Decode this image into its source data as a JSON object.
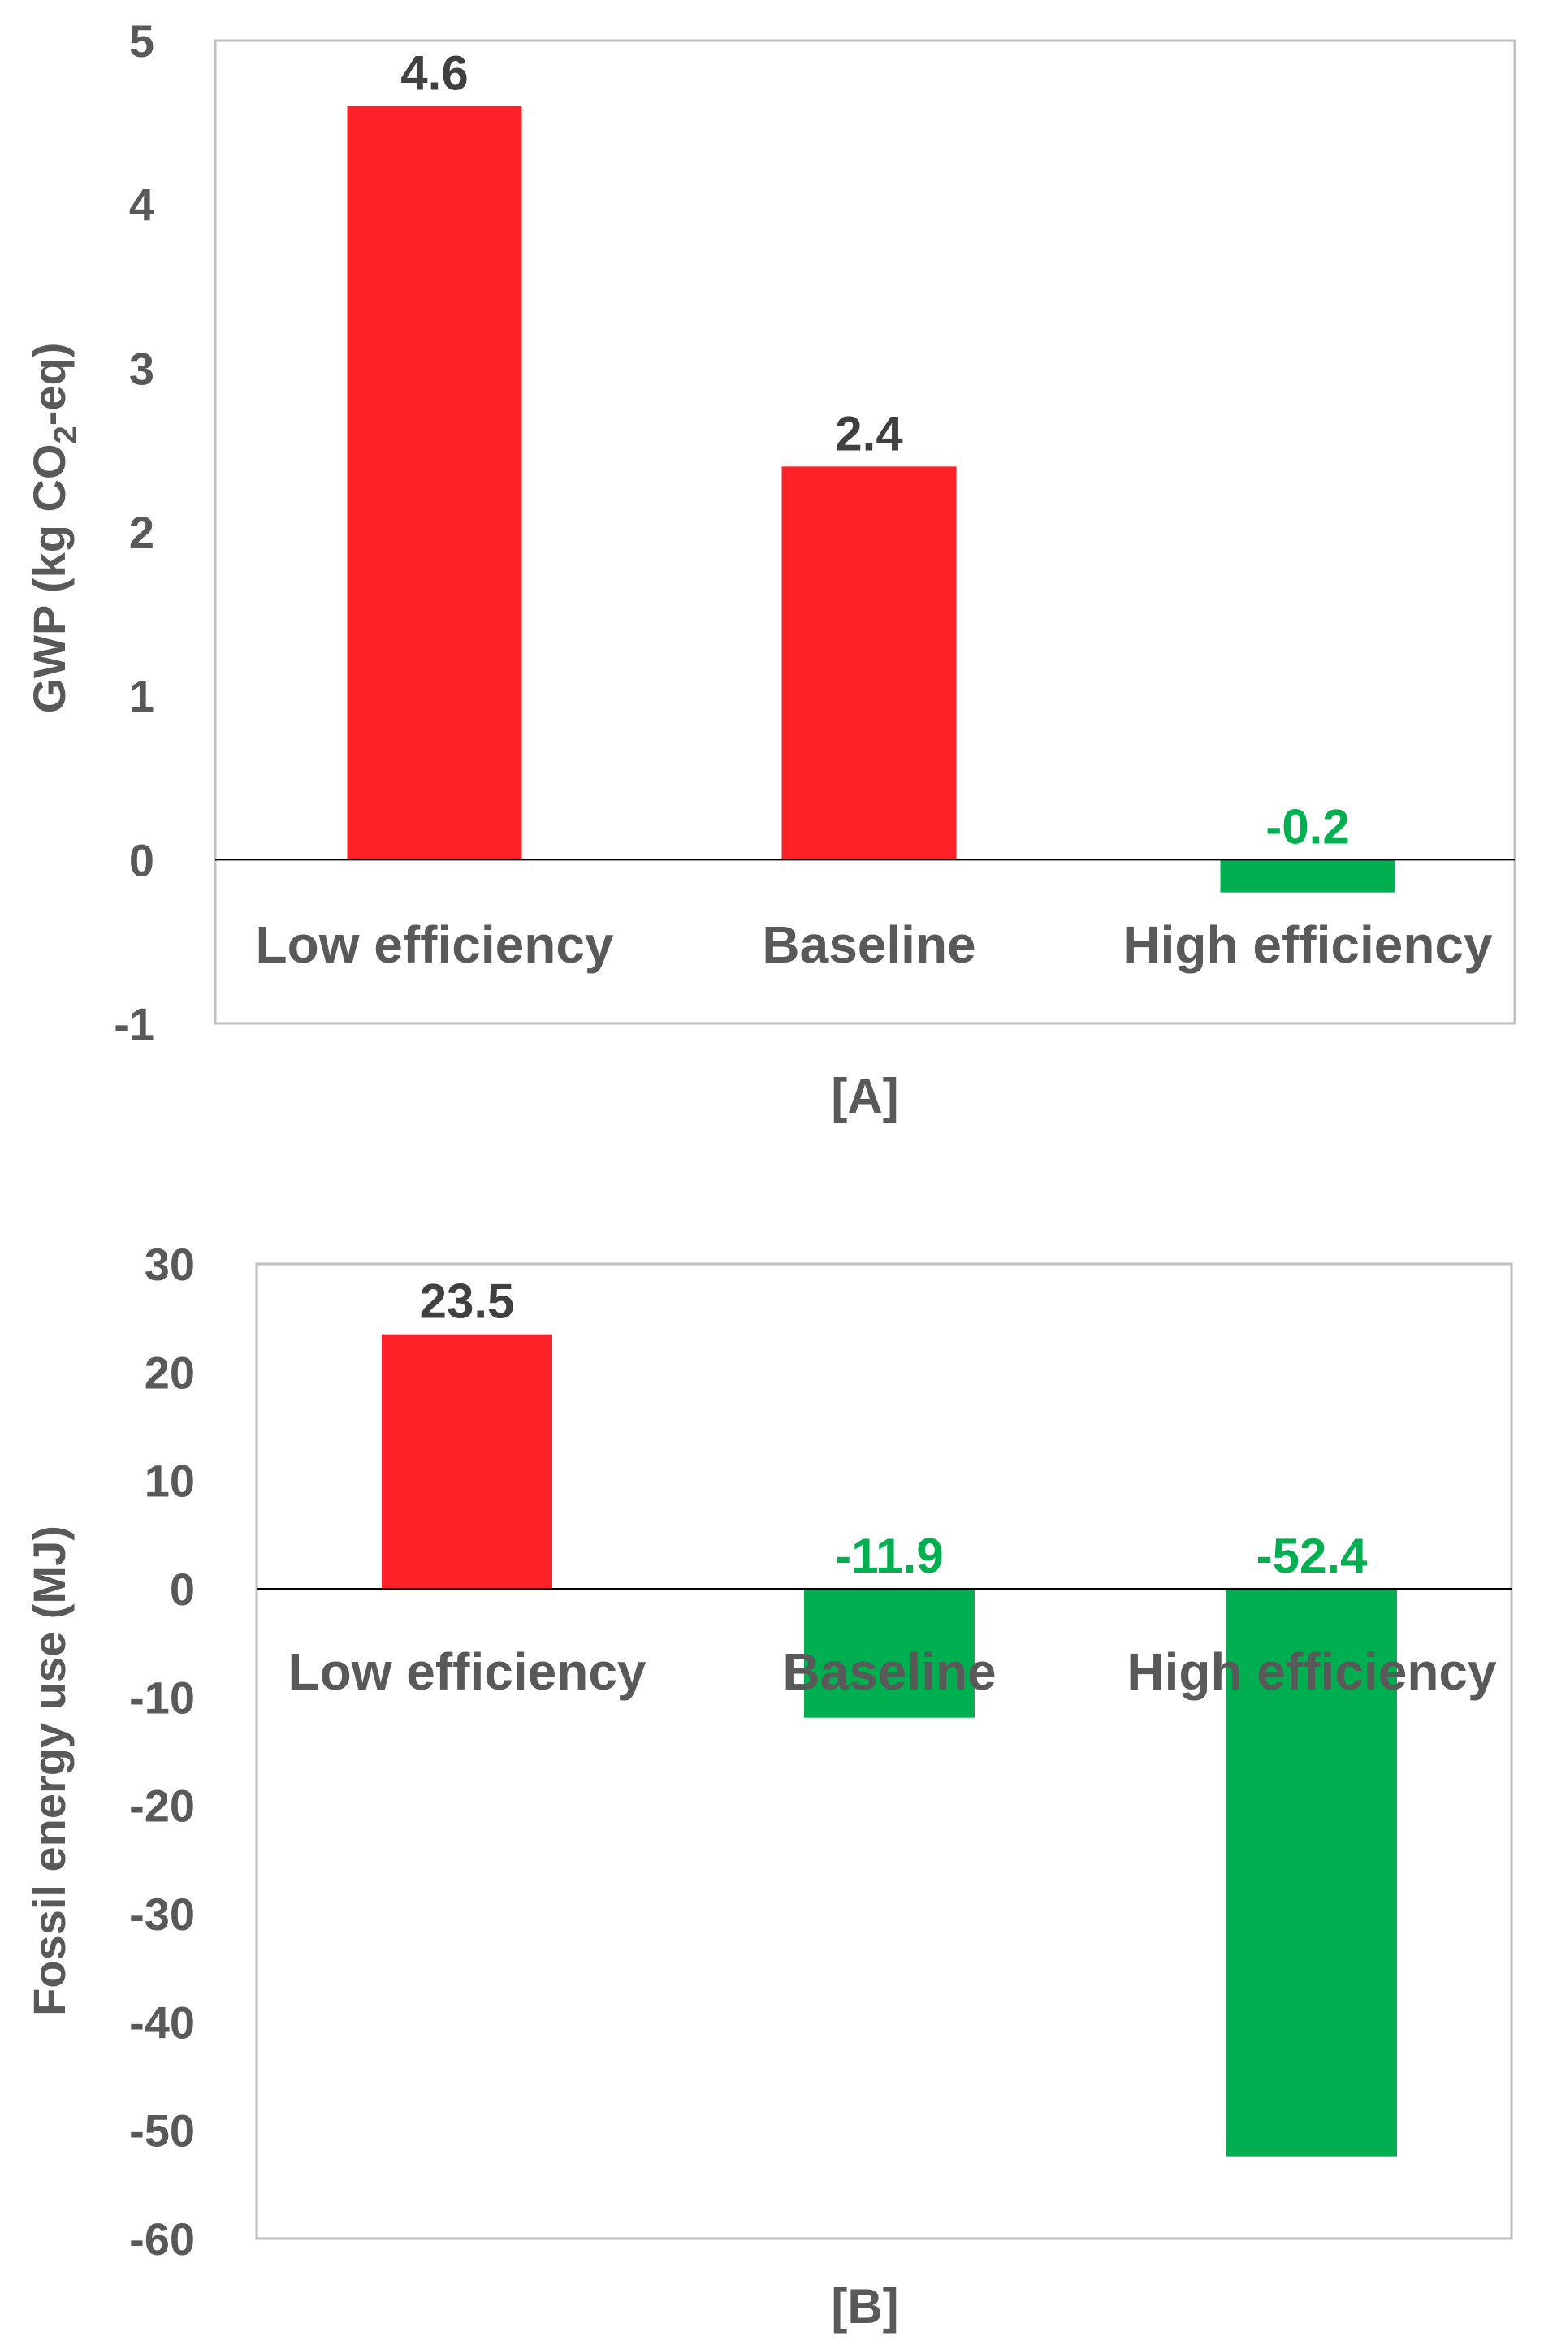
{
  "colors": {
    "positive": "#ff2128",
    "negative": "#00b050",
    "axis": "#595959",
    "label_pos": "#404040",
    "label_neg": "#00b050"
  },
  "chart_data": [
    {
      "type": "bar",
      "panel_label": "[A]",
      "categories": [
        "Low efficiency",
        "Baseline",
        "High efficiency"
      ],
      "values": [
        4.6,
        2.4,
        -0.2
      ],
      "data_labels": [
        "4.6",
        "2.4",
        "-0.2"
      ],
      "ylabel": "GWP (kg CO",
      "ylabel_sub": "2",
      "ylabel_tail": "-eq)",
      "ylim": [
        -1,
        5
      ],
      "yticks": [
        5,
        4,
        3,
        2,
        1,
        0,
        -1
      ],
      "ytick_labels": [
        "5",
        "4",
        "3",
        "2",
        "1",
        "0",
        "-1"
      ],
      "grid": false,
      "legend": "none"
    },
    {
      "type": "bar",
      "panel_label": "[B]",
      "categories": [
        "Low efficiency",
        "Baseline",
        "High efficiency"
      ],
      "values": [
        23.5,
        -11.9,
        -52.4
      ],
      "data_labels": [
        "23.5",
        "-11.9",
        "-52.4"
      ],
      "ylabel": "Fossil energy use (MJ)",
      "ylim": [
        -60,
        30
      ],
      "yticks": [
        30,
        20,
        10,
        0,
        -10,
        -20,
        -30,
        -40,
        -50,
        -60
      ],
      "ytick_labels": [
        "30",
        "20",
        "10",
        "0",
        "-10",
        "-20",
        "-30",
        "-40",
        "-50",
        "-60"
      ],
      "grid": false,
      "legend": "none"
    }
  ]
}
